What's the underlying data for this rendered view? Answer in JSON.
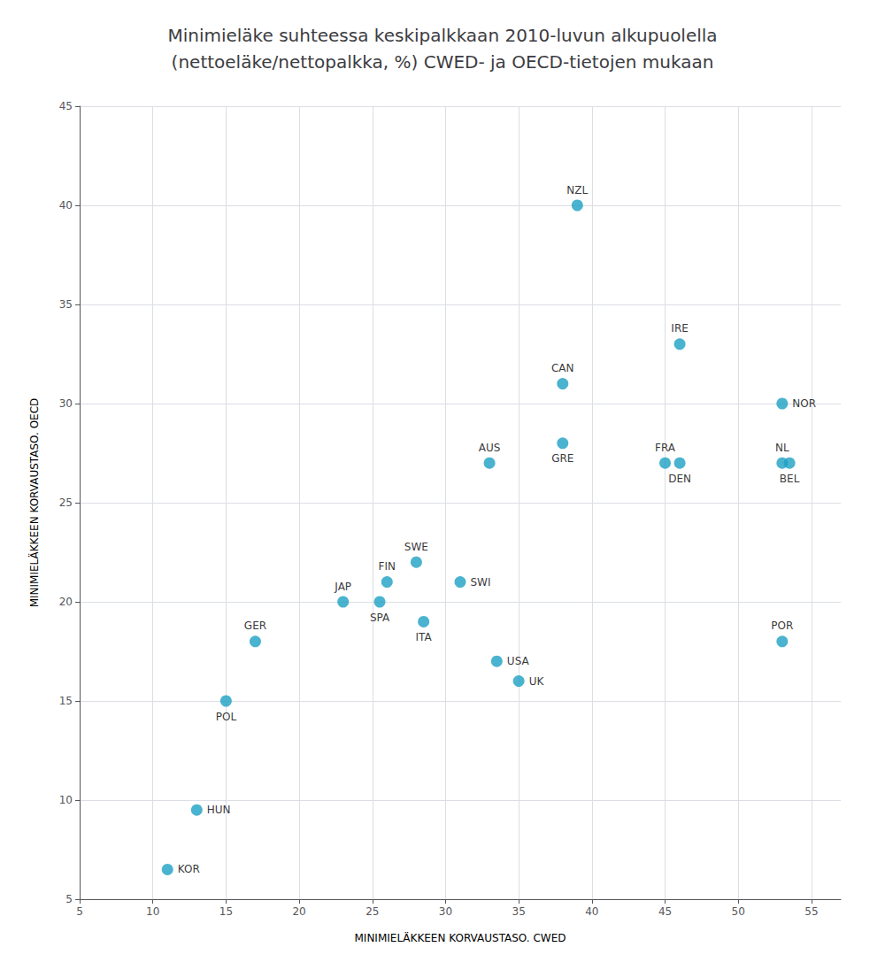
{
  "chart_data": {
    "type": "scatter",
    "title": "Minimieläke suhteessa keskipalkkaan 2010-luvun alkupuolella\n(nettoeläke/nettopalkka, %) CWED- ja OECD-tietojen mukaan",
    "xlabel": "MINIMIELÄKKEEN KORVAUSTASO. CWED",
    "ylabel": "MINIMIELÄKKEEN KORVAUSTASO. OECD",
    "x": [
      11,
      13,
      15,
      17,
      23,
      26,
      25.5,
      28,
      28.5,
      31,
      33,
      33.5,
      35,
      38,
      38,
      39,
      45,
      46,
      46,
      53,
      53,
      53.5,
      53
    ],
    "values": [
      6.5,
      9.5,
      15,
      18,
      20,
      21,
      20,
      22,
      19,
      21,
      27,
      17,
      16,
      28,
      31,
      40,
      27,
      27,
      33,
      27,
      30,
      27,
      18
    ],
    "annotations": [
      "KOR",
      "HUN",
      "POL",
      "GER",
      "JAP",
      "FIN",
      "SPA",
      "SWE",
      "ITA",
      "SWI",
      "AUS",
      "USA",
      "UK",
      "GRE",
      "CAN",
      "NZL",
      "FRA",
      "DEN",
      "IRE",
      "NL",
      "NOR",
      "BEL",
      "POR"
    ],
    "color": "#1da0c3",
    "xlim": [
      5,
      57
    ],
    "ylim": [
      5,
      45
    ],
    "xticks": [
      5,
      10,
      15,
      20,
      25,
      30,
      35,
      40,
      45,
      50,
      55
    ],
    "yticks": [
      5,
      10,
      15,
      20,
      25,
      30,
      35,
      40,
      45
    ],
    "grid": true
  }
}
